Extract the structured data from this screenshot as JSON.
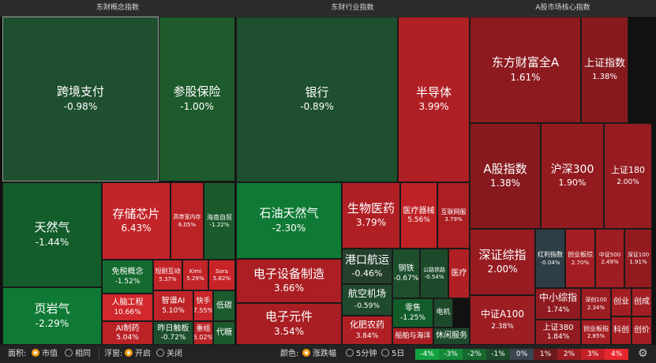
{
  "panels": [
    {
      "id": "concept",
      "title": "东财概念指数",
      "tiles": [
        {
          "name": "跨境支付",
          "pct": "-0.98%",
          "color": "#1e4f2e",
          "big": true,
          "sel": true
        },
        {
          "name": "参股保险",
          "pct": "-1.00%",
          "color": "#1d5a2c",
          "big": true
        },
        {
          "name": "天然气",
          "pct": "-1.44%",
          "color": "#135d2b",
          "big": true
        },
        {
          "name": "存储芯片",
          "pct": "6.43%",
          "color": "#c2242a",
          "big": true
        },
        {
          "name": "高带宽内存",
          "pct": "6.05%",
          "color": "#bb2226"
        },
        {
          "name": "海南自贸",
          "pct": "-1.22%",
          "color": "#1a5a2d"
        },
        {
          "name": "免税概念",
          "pct": "-1.52%",
          "color": "#146a2f"
        },
        {
          "name": "短剧互动",
          "pct": "5.37%",
          "color": "#c22428"
        },
        {
          "name": "Kimi",
          "pct": "5.29%",
          "color": "#c22428"
        },
        {
          "name": "Sora",
          "pct": "5.82%",
          "color": "#c82428"
        },
        {
          "name": "人脑工程",
          "pct": "10.66%",
          "color": "#d0282c"
        },
        {
          "name": "智谱AI",
          "pct": "5.10%",
          "color": "#bd2327"
        },
        {
          "name": "快手",
          "pct": "7.55%",
          "color": "#c8262a"
        },
        {
          "name": "低碳",
          "pct": "",
          "color": "#1a5a2c"
        },
        {
          "name": "AI制药",
          "pct": "5.04%",
          "color": "#bb2226"
        },
        {
          "name": "昨日触板",
          "pct": "-0.72%",
          "color": "#1d4f2d"
        },
        {
          "name": "重组",
          "pct": "5.02%",
          "color": "#b92226"
        },
        {
          "name": "代糖",
          "pct": "",
          "color": "#1a5a2c"
        },
        {
          "name": "页岩气",
          "pct": "-2.29%",
          "color": "#0f7a35",
          "big": true
        }
      ]
    },
    {
      "id": "industry",
      "title": "东财行业指数",
      "tiles": [
        {
          "name": "银行",
          "pct": "-0.89%",
          "color": "#1e4f2e",
          "big": true
        },
        {
          "name": "半导体",
          "pct": "3.99%",
          "color": "#b01f24",
          "big": true
        },
        {
          "name": "石油天然气",
          "pct": "-2.30%",
          "color": "#0f7a35",
          "big": true
        },
        {
          "name": "生物医药",
          "pct": "3.79%",
          "color": "#b01f24",
          "big": true
        },
        {
          "name": "医疗器械",
          "pct": "5.56%",
          "color": "#bf2226"
        },
        {
          "name": "互联网服",
          "pct": "3.79%",
          "color": "#ab1f23"
        },
        {
          "name": "电子设备制造",
          "pct": "3.66%",
          "color": "#ab1e23",
          "big": true
        },
        {
          "name": "港口航运",
          "pct": "-0.46%",
          "color": "#24402d",
          "big": true
        },
        {
          "name": "钢铁",
          "pct": "-0.67%",
          "color": "#1d4f2d"
        },
        {
          "name": "公路铁路",
          "pct": "-0.54%",
          "color": "#1e4a2c"
        },
        {
          "name": "医疗",
          "pct": "",
          "color": "#b01f24"
        },
        {
          "name": "航空机场",
          "pct": "-0.59%",
          "color": "#1f4a2d",
          "big": true
        },
        {
          "name": "电子元件",
          "pct": "3.54%",
          "color": "#a81e23",
          "big": true
        },
        {
          "name": "化肥农药",
          "pct": "3.84%",
          "color": "#b01f24",
          "big": true
        },
        {
          "name": "零售",
          "pct": "-1.25%",
          "color": "#135d2b"
        },
        {
          "name": "电机",
          "pct": "",
          "color": "#1e4a2c"
        },
        {
          "name": "船舶与海洋",
          "pct": "",
          "color": "#a81e23"
        },
        {
          "name": "休闲服务",
          "pct": "",
          "color": "#1e4a2c"
        }
      ]
    },
    {
      "id": "core",
      "title": "A股市场核心指数",
      "tiles": [
        {
          "name": "东方财富全A",
          "pct": "1.61%",
          "color": "#8c1a1f",
          "big": true
        },
        {
          "name": "上证指数",
          "pct": "1.38%",
          "color": "#861a1e",
          "big": true
        },
        {
          "name": "A股指数",
          "pct": "1.38%",
          "color": "#861a1e",
          "big": true
        },
        {
          "name": "沪深300",
          "pct": "1.90%",
          "color": "#931b20",
          "big": true
        },
        {
          "name": "上证180",
          "pct": "2.00%",
          "color": "#961c21",
          "big": true
        },
        {
          "name": "深证综指",
          "pct": "2.00%",
          "color": "#961c21",
          "big": true
        },
        {
          "name": "红利指数",
          "pct": "-0.04%",
          "color": "#2e3e46"
        },
        {
          "name": "创业板综",
          "pct": "2.70%",
          "color": "#a31e23"
        },
        {
          "name": "中证500",
          "pct": "2.49%",
          "color": "#9f1d22"
        },
        {
          "name": "深证100",
          "pct": "1.91%",
          "color": "#931b20"
        },
        {
          "name": "中证A100",
          "pct": "2.38%",
          "color": "#9c1d22",
          "big": true
        },
        {
          "name": "中小综指",
          "pct": "1.74%",
          "color": "#8f1b20",
          "big": true
        },
        {
          "name": "深创100",
          "pct": "2.34%",
          "color": "#9c1d22"
        },
        {
          "name": "创业",
          "pct": "",
          "color": "#a31e23"
        },
        {
          "name": "创成",
          "pct": "",
          "color": "#a31e23"
        },
        {
          "name": "上证380",
          "pct": "1.84%",
          "color": "#911b20"
        },
        {
          "name": "创业板指",
          "pct": "2.85%",
          "color": "#a51e23"
        },
        {
          "name": "科创",
          "pct": "",
          "color": "#a31e23"
        },
        {
          "name": "创价",
          "pct": "",
          "color": "#a31e23"
        }
      ]
    }
  ],
  "bottom_bar": {
    "area_label": "面积:",
    "area_options": [
      "市值",
      "相同"
    ],
    "area_selected": "市值",
    "float_label": "浮窗:",
    "float_options": [
      "开启",
      "关闭"
    ],
    "float_selected": "开启",
    "color_label": "颜色:",
    "color_options": [
      "涨跌幅",
      "5分钟",
      "5日"
    ],
    "color_selected": "涨跌幅",
    "legend": [
      {
        "label": "-4%",
        "color": "#12a241"
      },
      {
        "label": "-3%",
        "color": "#138a38"
      },
      {
        "label": "-2%",
        "color": "#16692e"
      },
      {
        "label": "-1%",
        "color": "#1d4a2a"
      },
      {
        "label": "0%",
        "color": "#3b4651"
      },
      {
        "label": "1%",
        "color": "#6d1a1d"
      },
      {
        "label": "2%",
        "color": "#9a1d22"
      },
      {
        "label": "3%",
        "color": "#c41f26"
      },
      {
        "label": "4%",
        "color": "#e8262e"
      }
    ],
    "settings_icon": "gear-icon"
  }
}
